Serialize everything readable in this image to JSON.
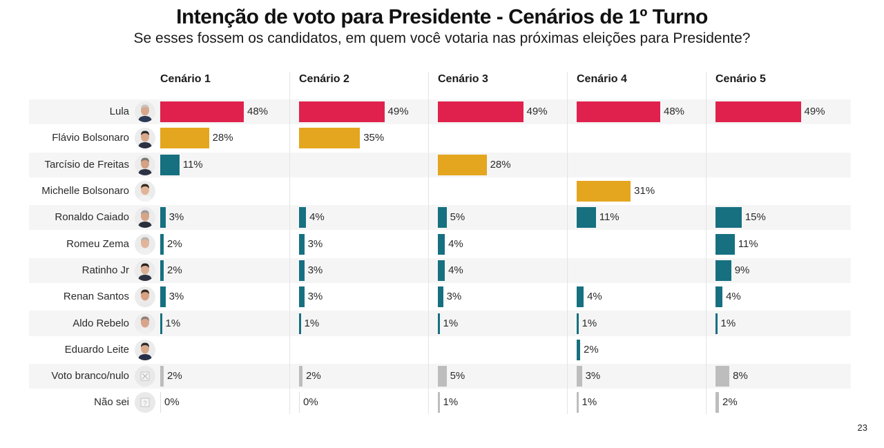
{
  "header": {
    "title": "Intenção de voto para Presidente - Cenários de 1º Turno",
    "subtitle": "Se esses fossem os candidatos, em quem você votaria nas próximas eleições para Presidente?"
  },
  "footer": {
    "page_number": "23"
  },
  "colors": {
    "lula": "#e0214d",
    "main_opponent": "#e4a51f",
    "other": "#167080",
    "blank_unknown": "#bdbdbd"
  },
  "chart_data": {
    "type": "bar",
    "orientation": "horizontal",
    "title": "Intenção de voto para Presidente - Cenários de 1º Turno",
    "subtitle": "Se esses fossem os candidatos, em quem você votaria nas próximas eleições para Presidente?",
    "unit": "%",
    "xlim": [
      0,
      50
    ],
    "grid": false,
    "legend": "none",
    "categories": [
      {
        "name": "Lula",
        "avatar": "photo-lula-icon"
      },
      {
        "name": "Flávio Bolsonaro",
        "avatar": "photo-flavio-bolsonaro-icon"
      },
      {
        "name": "Tarcísio de Freitas",
        "avatar": "photo-tarcisio-de-freitas-icon"
      },
      {
        "name": "Michelle Bolsonaro",
        "avatar": "photo-michelle-bolsonaro-icon"
      },
      {
        "name": "Ronaldo Caiado",
        "avatar": "photo-ronaldo-caiado-icon"
      },
      {
        "name": "Romeu Zema",
        "avatar": "photo-romeu-zema-icon"
      },
      {
        "name": "Ratinho Jr",
        "avatar": "photo-ratinho-jr-icon"
      },
      {
        "name": "Renan Santos",
        "avatar": "photo-renan-santos-icon"
      },
      {
        "name": "Aldo Rebelo",
        "avatar": "photo-aldo-rebelo-icon"
      },
      {
        "name": "Eduardo Leite",
        "avatar": "photo-eduardo-leite-icon"
      },
      {
        "name": "Voto branco/nulo",
        "avatar": "x-box-icon"
      },
      {
        "name": "Não sei",
        "avatar": "question-box-icon"
      }
    ],
    "series": [
      {
        "name": "Cenário 1",
        "values": [
          48,
          28,
          11,
          null,
          3,
          2,
          2,
          3,
          1,
          null,
          2,
          0
        ],
        "colors": [
          "lula",
          "main_opponent",
          "other",
          null,
          "other",
          "other",
          "other",
          "other",
          "other",
          null,
          "blank_unknown",
          "blank_unknown"
        ]
      },
      {
        "name": "Cenário 2",
        "values": [
          49,
          35,
          null,
          null,
          4,
          3,
          3,
          3,
          1,
          null,
          2,
          0
        ],
        "colors": [
          "lula",
          "main_opponent",
          null,
          null,
          "other",
          "other",
          "other",
          "other",
          "other",
          null,
          "blank_unknown",
          "blank_unknown"
        ]
      },
      {
        "name": "Cenário 3",
        "values": [
          49,
          null,
          28,
          null,
          5,
          4,
          4,
          3,
          1,
          null,
          5,
          1
        ],
        "colors": [
          "lula",
          null,
          "main_opponent",
          null,
          "other",
          "other",
          "other",
          "other",
          "other",
          null,
          "blank_unknown",
          "blank_unknown"
        ]
      },
      {
        "name": "Cenário 4",
        "values": [
          48,
          null,
          null,
          31,
          11,
          null,
          null,
          4,
          1,
          2,
          3,
          1
        ],
        "colors": [
          "lula",
          null,
          null,
          "main_opponent",
          "other",
          null,
          null,
          "other",
          "other",
          "other",
          "blank_unknown",
          "blank_unknown"
        ]
      },
      {
        "name": "Cenário 5",
        "values": [
          49,
          null,
          null,
          null,
          15,
          11,
          9,
          4,
          1,
          null,
          8,
          2
        ],
        "colors": [
          "lula",
          null,
          null,
          null,
          "other",
          "other",
          "other",
          "other",
          "other",
          null,
          "blank_unknown",
          "blank_unknown"
        ]
      }
    ]
  }
}
